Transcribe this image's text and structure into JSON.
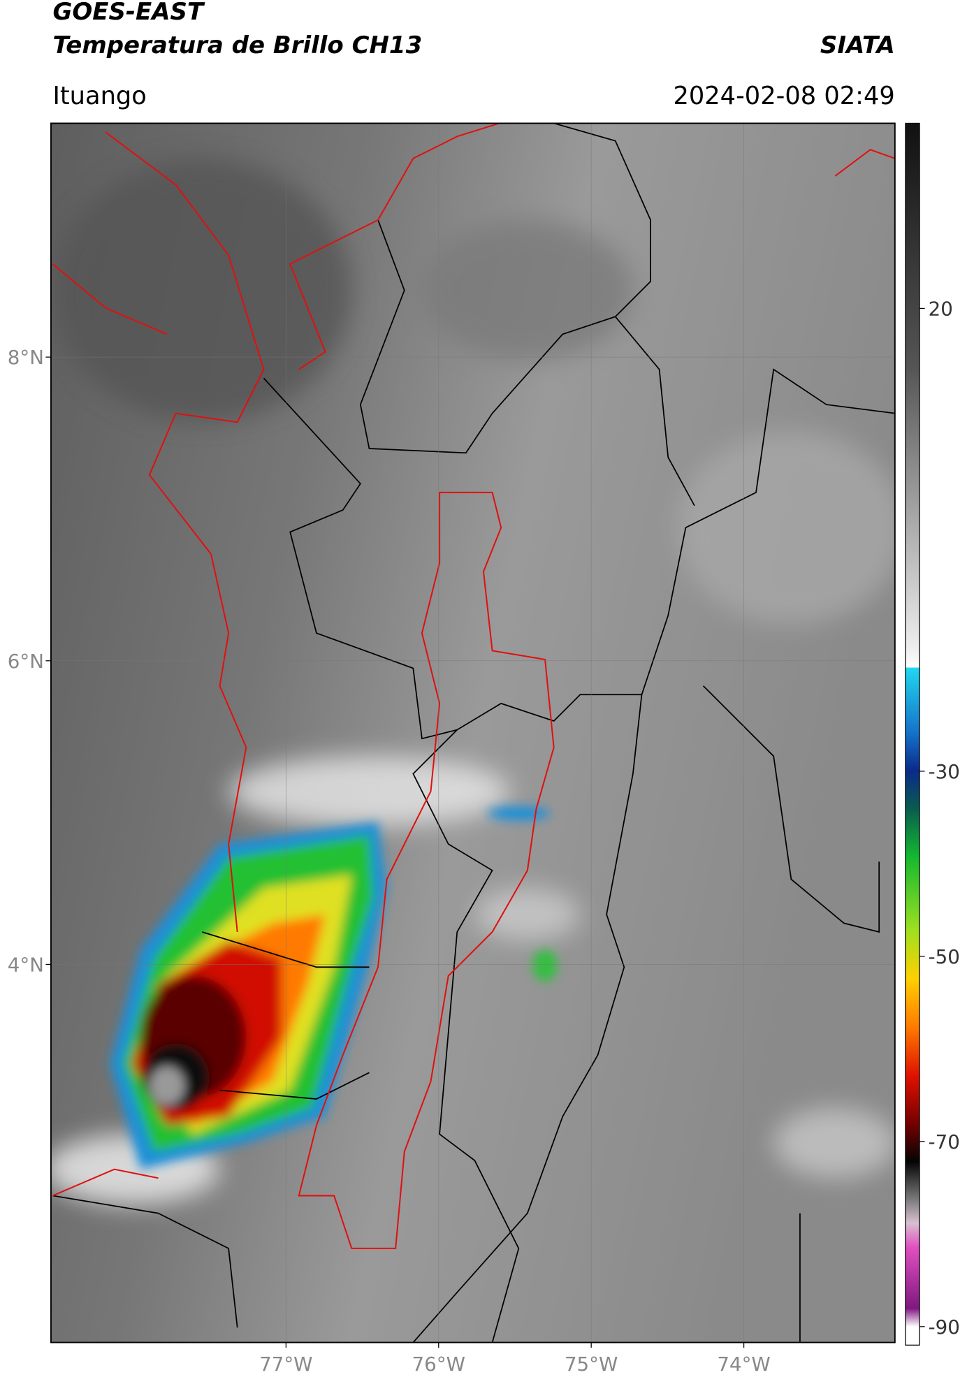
{
  "header": {
    "title_line1": "GOES-EAST",
    "title_line2": "Temperatura de Brillo CH13",
    "source": "SIATA",
    "location": "Ituango",
    "datetime": "2024-02-08 02:49"
  },
  "map": {
    "xlim": [
      -78.54,
      -73.01
    ],
    "ylim": [
      1.51,
      9.54
    ],
    "xticks": [
      {
        "value": -77,
        "label": "77°W"
      },
      {
        "value": -76,
        "label": "76°W"
      },
      {
        "value": -75,
        "label": "75°W"
      },
      {
        "value": -74,
        "label": "74°W"
      }
    ],
    "yticks": [
      {
        "value": 8,
        "label": "8°N"
      },
      {
        "value": 6,
        "label": "6°N"
      },
      {
        "value": 4,
        "label": "4°N"
      }
    ],
    "grid": true
  },
  "colorbar": {
    "lim": [
      -92,
      40
    ],
    "ticks": [
      20,
      -30,
      -50,
      -70,
      -90
    ]
  }
}
